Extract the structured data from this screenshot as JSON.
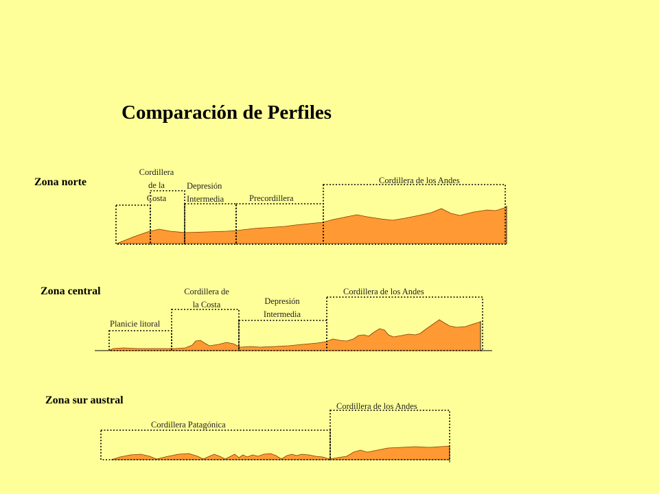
{
  "title": "Comparación de Perfiles",
  "colors": {
    "background": "#ffff99",
    "terrain": "#ff9933"
  },
  "zones": {
    "norte": {
      "name": "Zona norte",
      "labels": {
        "cordillera_costa": "Cordillera\nde la\nCosta",
        "depresion": "Depresión\nIntermedia",
        "precordillera": "Precordillera",
        "andes": "Cordillera de los Andes"
      }
    },
    "central": {
      "name": "Zona central",
      "labels": {
        "planicie": "Planicie litoral",
        "cordillera_costa": "Cordillera de\nla Costa",
        "depresion": "Depresión\nIntermedia",
        "andes": "Cordillera de los Andes"
      }
    },
    "sur": {
      "name": "Zona sur austral",
      "labels": {
        "patagonica": "Cordillera Patagónica",
        "andes": "Cordillera de los Andes"
      }
    }
  }
}
